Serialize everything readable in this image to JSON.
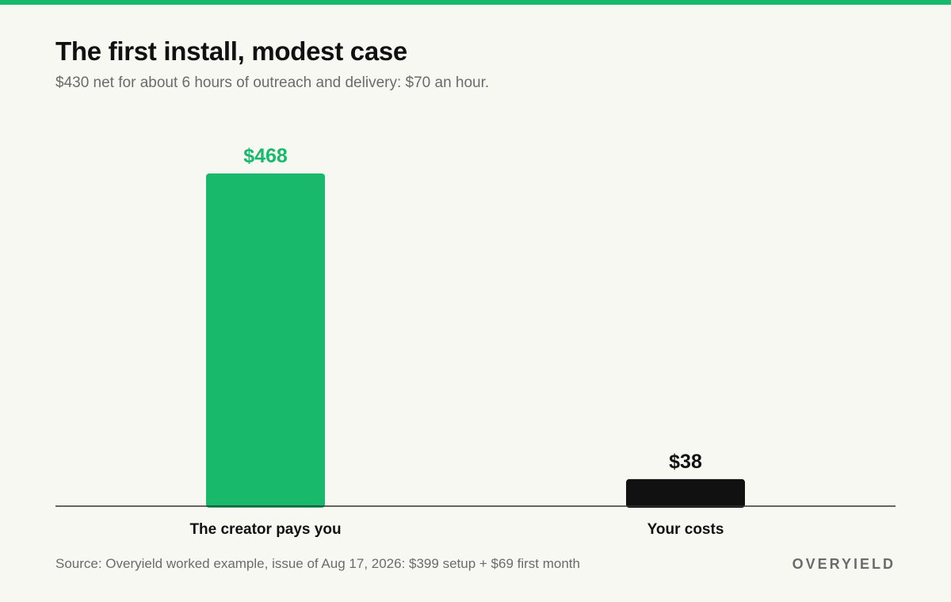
{
  "colors": {
    "accent": "#19b96b",
    "dark": "#111111",
    "muted": "#6b6b6b",
    "background": "#f8f8f3"
  },
  "chart_data": {
    "type": "bar",
    "title": "The first install, modest case",
    "subtitle": "$430 net for about 6 hours of outreach and delivery: $70 an hour.",
    "categories": [
      "The creator pays you",
      "Your costs"
    ],
    "values": [
      468,
      38
    ],
    "value_labels": [
      "$468",
      "$38"
    ],
    "bar_colors": [
      "#19b96b",
      "#111111"
    ],
    "label_colors": [
      "#19b96b",
      "#111111"
    ],
    "xlabel": "",
    "ylabel": "",
    "ylim": [
      0,
      468
    ],
    "grid": false,
    "legend": "none"
  },
  "footer": {
    "source": "Source: Overyield worked example, issue of Aug 17, 2026: $399 setup + $69 first month",
    "brand": "OVERYIELD"
  }
}
